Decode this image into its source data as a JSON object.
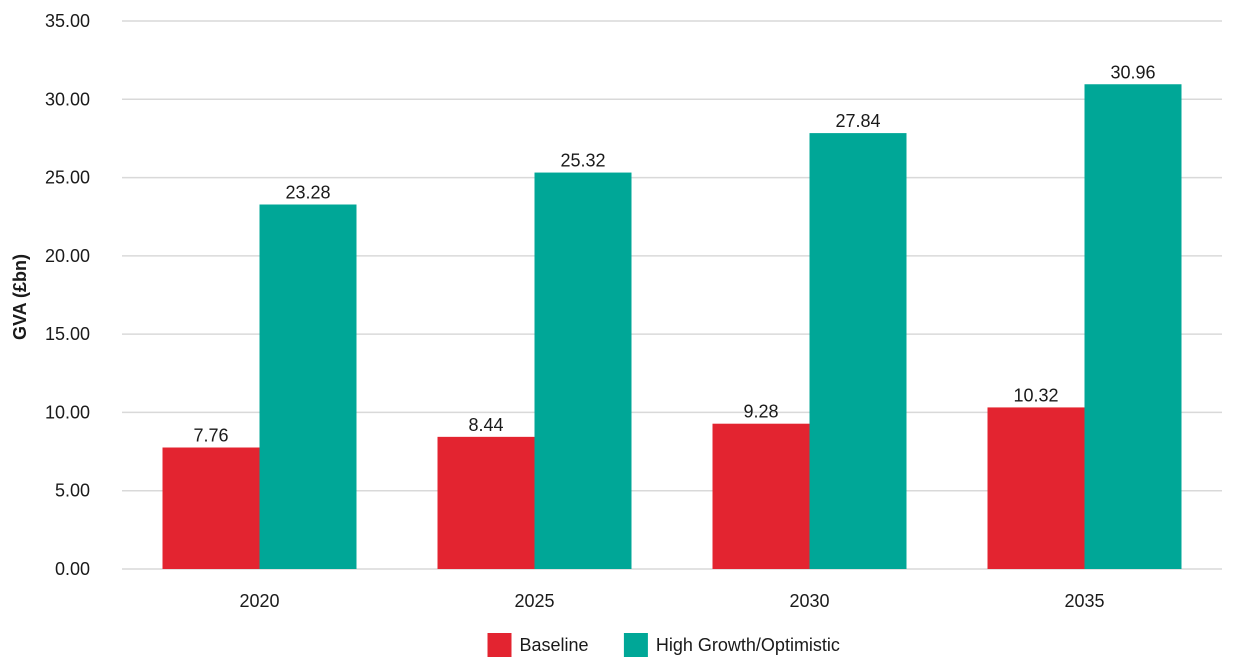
{
  "chart_data": {
    "type": "bar",
    "title": "",
    "xlabel": "",
    "ylabel": "GVA (£bn)",
    "categories": [
      "2020",
      "2025",
      "2030",
      "2035"
    ],
    "series": [
      {
        "name": "Baseline",
        "color": "#e32430",
        "values": [
          7.76,
          8.44,
          9.28,
          10.32
        ]
      },
      {
        "name": "High Growth/Optimistic",
        "color": "#00a797",
        "values": [
          23.28,
          25.32,
          27.84,
          30.96
        ]
      }
    ],
    "ylim": [
      0,
      35
    ],
    "yticks": [
      "0.00",
      "5.00",
      "10.00",
      "15.00",
      "20.00",
      "25.00",
      "30.00",
      "35.00"
    ],
    "grid": true,
    "legend_position": "bottom-center"
  }
}
